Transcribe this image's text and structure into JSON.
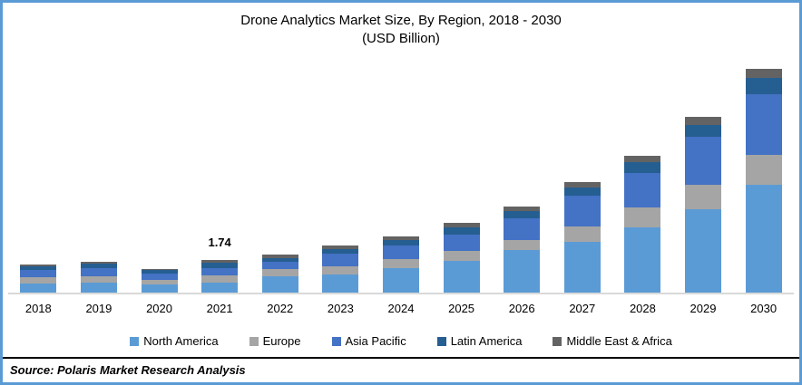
{
  "frame": {
    "border_color": "#5B9BD5",
    "background": "#ffffff"
  },
  "header": {
    "title": "Drone Analytics Market Size, By Region, 2018 - 2030",
    "subtitle": "(USD Billion)"
  },
  "chart_data": {
    "type": "bar",
    "stacked": true,
    "title": "Drone Analytics Market Size, By Region, 2018 - 2030",
    "subtitle": "(USD Billion)",
    "xlabel": "",
    "ylabel": "USD Billion",
    "ylim": [
      0,
      12.5
    ],
    "grid": false,
    "y_axis_hidden": true,
    "legend_position": "bottom",
    "baseline_color": "#D9D9D9",
    "categories": [
      "2018",
      "2019",
      "2020",
      "2021",
      "2022",
      "2023",
      "2024",
      "2025",
      "2026",
      "2027",
      "2028",
      "2029",
      "2030"
    ],
    "series": [
      {
        "name": "North America",
        "color": "#5B9BD5",
        "values": [
          0.48,
          0.53,
          0.44,
          0.53,
          0.85,
          0.97,
          1.33,
          1.69,
          2.27,
          2.71,
          3.48,
          4.45,
          5.75
        ]
      },
      {
        "name": "Europe",
        "color": "#A5A5A5",
        "values": [
          0.34,
          0.34,
          0.24,
          0.38,
          0.39,
          0.41,
          0.46,
          0.53,
          0.55,
          0.82,
          1.06,
          1.3,
          1.6
        ]
      },
      {
        "name": "Asia Pacific",
        "color": "#4472C4",
        "values": [
          0.39,
          0.44,
          0.34,
          0.39,
          0.41,
          0.68,
          0.73,
          0.87,
          1.16,
          1.64,
          1.84,
          2.56,
          3.24
        ]
      },
      {
        "name": "Latin America",
        "color": "#255E91",
        "values": [
          0.19,
          0.24,
          0.19,
          0.29,
          0.19,
          0.24,
          0.29,
          0.39,
          0.39,
          0.44,
          0.58,
          0.63,
          0.87
        ]
      },
      {
        "name": "Middle East & Africa",
        "color": "#636363",
        "values": [
          0.12,
          0.1,
          0.07,
          0.15,
          0.19,
          0.21,
          0.21,
          0.24,
          0.24,
          0.29,
          0.34,
          0.44,
          0.48
        ]
      }
    ],
    "annotations": [
      {
        "category": "2021",
        "text": "1.74"
      }
    ]
  },
  "footer": {
    "source_label": "Source: Polaris Market Research Analysis"
  }
}
